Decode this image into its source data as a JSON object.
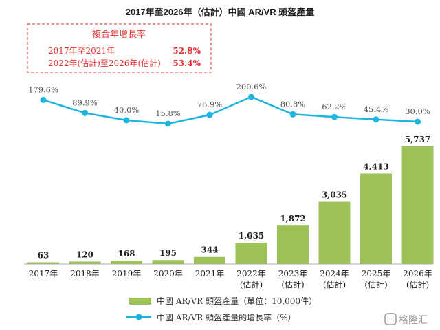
{
  "chart_data": {
    "type": "bar+line",
    "title": "2017年至2026年（估計）中國 AR/VR 頭盔產量",
    "categories": [
      [
        "2017年"
      ],
      [
        "2018年"
      ],
      [
        "2019年"
      ],
      [
        "2020年"
      ],
      [
        "2021年"
      ],
      [
        "2022年",
        "(估計)"
      ],
      [
        "2023年",
        "(估計)"
      ],
      [
        "2024年",
        "(估計)"
      ],
      [
        "2025年",
        "(估計)"
      ],
      [
        "2026年",
        "(估計)"
      ]
    ],
    "series": [
      {
        "name": "中國 AR/VR 頭盔產量（單位：10,000件）",
        "type": "bar",
        "color": "#9dc356",
        "values": [
          63,
          120,
          168,
          195,
          344,
          1035,
          1872,
          3035,
          4413,
          5737
        ],
        "labels": [
          "63",
          "120",
          "168",
          "195",
          "344",
          "1,035",
          "1,872",
          "3,035",
          "4,413",
          "5,737"
        ]
      },
      {
        "name": "中國 AR/VR 頭盔產量的增長率（%）",
        "type": "line",
        "color": "#1cb5e0",
        "values": [
          179.6,
          89.9,
          40.0,
          15.8,
          76.9,
          200.6,
          80.8,
          62.2,
          45.4,
          30.0
        ],
        "labels": [
          "179.6%",
          "89.9%",
          "40.0%",
          "15.8%",
          "76.9%",
          "200.6%",
          "80.8%",
          "62.2%",
          "45.4%",
          "30.0%"
        ]
      }
    ],
    "bar_ylim": [
      0,
      5737
    ],
    "line_ylim": [
      15.8,
      200.6
    ],
    "legend_position": "bottom-center",
    "cagr_box": {
      "title": "複合年增長率",
      "rows": [
        {
          "label": "2017年至2021年",
          "value": "52.8%"
        },
        {
          "label": "2022年(估計)至2026年(估計)",
          "value": "53.4%"
        }
      ]
    }
  },
  "watermark": "格隆汇"
}
